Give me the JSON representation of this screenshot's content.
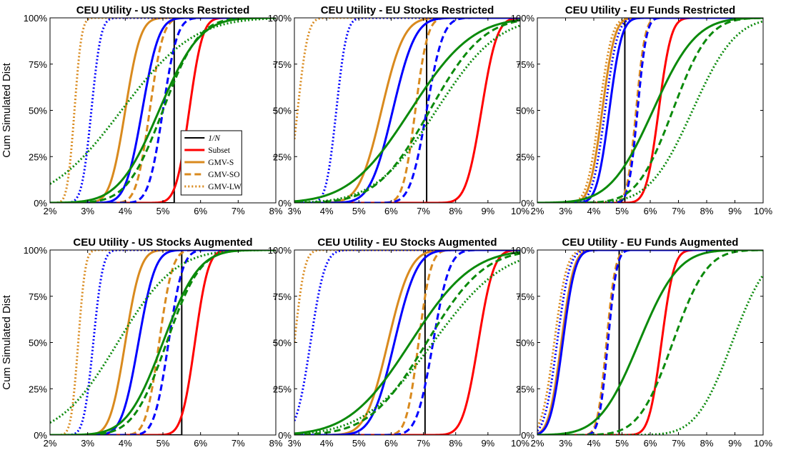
{
  "colors": {
    "one_over_n": "#000000",
    "subset": "#ff0000",
    "gmv_s": "#d98a1e",
    "gmv_so": "#d98a1e",
    "gmv_lw": "#d98a1e",
    "blue": "#0000ff",
    "green": "#0b8a0b"
  },
  "legend": {
    "panel_index": 0,
    "placement": "lower-right",
    "entries": [
      {
        "key": "one_over_n",
        "label": "1/N",
        "color": "#000000",
        "dash": "solid"
      },
      {
        "key": "subset",
        "label": "Subset",
        "color": "#ff0000",
        "dash": "solid"
      },
      {
        "key": "gmv_s",
        "label": "GMV-S",
        "color": "#d98a1e",
        "dash": "solid"
      },
      {
        "key": "gmv_so",
        "label": "GMV-SO",
        "color": "#d98a1e",
        "dash": "dashed"
      },
      {
        "key": "gmv_lw",
        "label": "GMV-LW",
        "color": "#d98a1e",
        "dash": "dotted"
      }
    ]
  },
  "ylabel": "Cum Simulated Dist",
  "chart_data": [
    {
      "type": "line",
      "title": "CEU Utility - US Stocks Restricted",
      "xlim": [
        2,
        8
      ],
      "xticks": [
        2,
        3,
        4,
        5,
        6,
        7,
        8
      ],
      "ylim": [
        0,
        100
      ],
      "yticks": [
        0,
        25,
        50,
        75,
        100
      ],
      "x_unit": "%",
      "y_unit": "%",
      "grid": false,
      "legend": "lower-right",
      "series": [
        {
          "key": "one_over_n",
          "color": "#000000",
          "dash": "solid",
          "vertical": 5.3
        },
        {
          "key": "subset",
          "color": "#ff0000",
          "dash": "solid",
          "mu": 5.7,
          "sd": 0.28
        },
        {
          "key": "gmv_s",
          "color": "#d98a1e",
          "dash": "solid",
          "mu": 4.0,
          "sd": 0.32
        },
        {
          "key": "gmv_so",
          "color": "#d98a1e",
          "dash": "dashed",
          "mu": 4.65,
          "sd": 0.28
        },
        {
          "key": "gmv_lw",
          "color": "#d98a1e",
          "dash": "dotted",
          "mu": 2.65,
          "sd": 0.15
        },
        {
          "key": "blue_s",
          "color": "#0000ff",
          "dash": "solid",
          "mu": 4.45,
          "sd": 0.35
        },
        {
          "key": "blue_so",
          "color": "#0000ff",
          "dash": "dashed",
          "mu": 5.0,
          "sd": 0.3
        },
        {
          "key": "blue_lw",
          "color": "#0000ff",
          "dash": "dotted",
          "mu": 3.1,
          "sd": 0.2
        },
        {
          "key": "green_s",
          "color": "#0b8a0b",
          "dash": "solid",
          "mu": 4.9,
          "sd": 0.85
        },
        {
          "key": "green_so",
          "color": "#0b8a0b",
          "dash": "dashed",
          "mu": 5.0,
          "sd": 0.75
        },
        {
          "key": "green_lw",
          "color": "#0b8a0b",
          "dash": "dotted",
          "mu": 3.9,
          "sd": 1.5
        }
      ]
    },
    {
      "type": "line",
      "title": "CEU Utility - EU Stocks Restricted",
      "xlim": [
        3,
        10
      ],
      "xticks": [
        3,
        4,
        5,
        6,
        7,
        8,
        9,
        10
      ],
      "ylim": [
        0,
        100
      ],
      "yticks": [
        0,
        25,
        50,
        75,
        100
      ],
      "x_unit": "%",
      "y_unit": "%",
      "grid": false,
      "series": [
        {
          "key": "one_over_n",
          "color": "#000000",
          "dash": "solid",
          "vertical": 7.1
        },
        {
          "key": "subset",
          "color": "#ff0000",
          "dash": "solid",
          "mu": 8.8,
          "sd": 0.38
        },
        {
          "key": "gmv_s",
          "color": "#d98a1e",
          "dash": "solid",
          "mu": 5.7,
          "sd": 0.55
        },
        {
          "key": "gmv_so",
          "color": "#d98a1e",
          "dash": "dashed",
          "mu": 6.75,
          "sd": 0.3
        },
        {
          "key": "gmv_lw",
          "color": "#d98a1e",
          "dash": "dotted",
          "mu": 3.1,
          "sd": 0.25
        },
        {
          "key": "blue_s",
          "color": "#0000ff",
          "dash": "solid",
          "mu": 6.05,
          "sd": 0.55
        },
        {
          "key": "blue_so",
          "color": "#0000ff",
          "dash": "dashed",
          "mu": 7.1,
          "sd": 0.4
        },
        {
          "key": "blue_lw",
          "color": "#0000ff",
          "dash": "dotted",
          "mu": 4.3,
          "sd": 0.25
        },
        {
          "key": "green_s",
          "color": "#0b8a0b",
          "dash": "solid",
          "mu": 6.6,
          "sd": 1.5
        },
        {
          "key": "green_so",
          "color": "#0b8a0b",
          "dash": "dashed",
          "mu": 7.2,
          "sd": 1.3
        },
        {
          "key": "green_lw",
          "color": "#0b8a0b",
          "dash": "dotted",
          "mu": 7.4,
          "sd": 1.5
        }
      ]
    },
    {
      "type": "line",
      "title": "CEU Utility - EU Funds Restricted",
      "xlim": [
        2,
        10
      ],
      "xticks": [
        2,
        3,
        4,
        5,
        6,
        7,
        8,
        9,
        10
      ],
      "ylim": [
        0,
        100
      ],
      "yticks": [
        0,
        25,
        50,
        75,
        100
      ],
      "x_unit": "%",
      "y_unit": "%",
      "grid": false,
      "series": [
        {
          "key": "one_over_n",
          "color": "#000000",
          "dash": "solid",
          "vertical": 5.1
        },
        {
          "key": "subset",
          "color": "#ff0000",
          "dash": "solid",
          "mu": 6.3,
          "sd": 0.35
        },
        {
          "key": "gmv_s",
          "color": "#d98a1e",
          "dash": "solid",
          "mu": 4.3,
          "sd": 0.35
        },
        {
          "key": "gmv_so",
          "color": "#d98a1e",
          "dash": "dashed",
          "mu": 5.5,
          "sd": 0.25
        },
        {
          "key": "gmv_lw",
          "color": "#d98a1e",
          "dash": "dotted",
          "mu": 4.2,
          "sd": 0.35
        },
        {
          "key": "blue_s",
          "color": "#0000ff",
          "dash": "solid",
          "mu": 4.55,
          "sd": 0.35
        },
        {
          "key": "blue_so",
          "color": "#0000ff",
          "dash": "dashed",
          "mu": 5.55,
          "sd": 0.25
        },
        {
          "key": "blue_lw",
          "color": "#0000ff",
          "dash": "dotted",
          "mu": 4.4,
          "sd": 0.35
        },
        {
          "key": "green_s",
          "color": "#0b8a0b",
          "dash": "solid",
          "mu": 6.1,
          "sd": 1.2
        },
        {
          "key": "green_so",
          "color": "#0b8a0b",
          "dash": "dashed",
          "mu": 6.8,
          "sd": 1.0
        },
        {
          "key": "green_lw",
          "color": "#0b8a0b",
          "dash": "dotted",
          "mu": 7.5,
          "sd": 1.2
        }
      ]
    },
    {
      "type": "line",
      "title": "CEU Utility - US Stocks Augmented",
      "xlim": [
        2,
        8
      ],
      "xticks": [
        2,
        3,
        4,
        5,
        6,
        7,
        8
      ],
      "ylim": [
        0,
        100
      ],
      "yticks": [
        0,
        25,
        50,
        75,
        100
      ],
      "x_unit": "%",
      "y_unit": "%",
      "grid": false,
      "series": [
        {
          "key": "one_over_n",
          "color": "#000000",
          "dash": "solid",
          "vertical": 5.5
        },
        {
          "key": "subset",
          "color": "#ff0000",
          "dash": "solid",
          "mu": 5.85,
          "sd": 0.28
        },
        {
          "key": "gmv_s",
          "color": "#d98a1e",
          "dash": "solid",
          "mu": 4.0,
          "sd": 0.32
        },
        {
          "key": "gmv_so",
          "color": "#d98a1e",
          "dash": "dashed",
          "mu": 4.9,
          "sd": 0.28
        },
        {
          "key": "gmv_lw",
          "color": "#d98a1e",
          "dash": "dotted",
          "mu": 2.75,
          "sd": 0.15
        },
        {
          "key": "blue_s",
          "color": "#0000ff",
          "dash": "solid",
          "mu": 4.35,
          "sd": 0.35
        },
        {
          "key": "blue_so",
          "color": "#0000ff",
          "dash": "dashed",
          "mu": 5.15,
          "sd": 0.3
        },
        {
          "key": "blue_lw",
          "color": "#0000ff",
          "dash": "dotted",
          "mu": 3.15,
          "sd": 0.2
        },
        {
          "key": "green_s",
          "color": "#0b8a0b",
          "dash": "solid",
          "mu": 5.0,
          "sd": 0.75
        },
        {
          "key": "green_so",
          "color": "#0b8a0b",
          "dash": "dashed",
          "mu": 5.1,
          "sd": 0.7
        },
        {
          "key": "green_lw",
          "color": "#0b8a0b",
          "dash": "dotted",
          "mu": 3.8,
          "sd": 1.2
        }
      ]
    },
    {
      "type": "line",
      "title": "CEU Utility - EU Stocks Augmented",
      "xlim": [
        3,
        10
      ],
      "xticks": [
        3,
        4,
        5,
        6,
        7,
        8,
        9,
        10
      ],
      "ylim": [
        0,
        100
      ],
      "yticks": [
        0,
        25,
        50,
        75,
        100
      ],
      "x_unit": "%",
      "y_unit": "%",
      "grid": false,
      "series": [
        {
          "key": "one_over_n",
          "color": "#000000",
          "dash": "solid",
          "vertical": 7.05
        },
        {
          "key": "subset",
          "color": "#ff0000",
          "dash": "solid",
          "mu": 8.7,
          "sd": 0.38
        },
        {
          "key": "gmv_s",
          "color": "#d98a1e",
          "dash": "solid",
          "mu": 5.9,
          "sd": 0.55
        },
        {
          "key": "gmv_so",
          "color": "#d98a1e",
          "dash": "dashed",
          "mu": 6.85,
          "sd": 0.3
        },
        {
          "key": "gmv_lw",
          "color": "#d98a1e",
          "dash": "dotted",
          "mu": 3.0,
          "sd": 0.25
        },
        {
          "key": "blue_s",
          "color": "#0000ff",
          "dash": "solid",
          "mu": 6.1,
          "sd": 0.55
        },
        {
          "key": "blue_so",
          "color": "#0000ff",
          "dash": "dashed",
          "mu": 7.3,
          "sd": 0.4
        },
        {
          "key": "blue_lw",
          "color": "#0000ff",
          "dash": "dotted",
          "mu": 3.5,
          "sd": 0.35
        },
        {
          "key": "green_s",
          "color": "#0b8a0b",
          "dash": "solid",
          "mu": 6.6,
          "sd": 1.5
        },
        {
          "key": "green_so",
          "color": "#0b8a0b",
          "dash": "dashed",
          "mu": 7.1,
          "sd": 1.4
        },
        {
          "key": "green_lw",
          "color": "#0b8a0b",
          "dash": "dotted",
          "mu": 7.3,
          "sd": 1.7
        }
      ]
    },
    {
      "type": "line",
      "title": "CEU Utility - EU Funds Augmented",
      "xlim": [
        2,
        10
      ],
      "xticks": [
        2,
        3,
        4,
        5,
        6,
        7,
        8,
        9,
        10
      ],
      "ylim": [
        0,
        100
      ],
      "yticks": [
        0,
        25,
        50,
        75,
        100
      ],
      "x_unit": "%",
      "y_unit": "%",
      "grid": false,
      "series": [
        {
          "key": "one_over_n",
          "color": "#000000",
          "dash": "solid",
          "vertical": 4.9
        },
        {
          "key": "subset",
          "color": "#ff0000",
          "dash": "solid",
          "mu": 6.4,
          "sd": 0.35
        },
        {
          "key": "gmv_s",
          "color": "#d98a1e",
          "dash": "solid",
          "mu": 2.85,
          "sd": 0.35
        },
        {
          "key": "gmv_so",
          "color": "#d98a1e",
          "dash": "dashed",
          "mu": 4.45,
          "sd": 0.25
        },
        {
          "key": "gmv_lw",
          "color": "#d98a1e",
          "dash": "dotted",
          "mu": 2.6,
          "sd": 0.35
        },
        {
          "key": "blue_s",
          "color": "#0000ff",
          "dash": "solid",
          "mu": 2.9,
          "sd": 0.35
        },
        {
          "key": "blue_so",
          "color": "#0000ff",
          "dash": "dashed",
          "mu": 4.5,
          "sd": 0.25
        },
        {
          "key": "blue_lw",
          "color": "#0000ff",
          "dash": "dotted",
          "mu": 2.7,
          "sd": 0.35
        },
        {
          "key": "green_s",
          "color": "#0b8a0b",
          "dash": "solid",
          "mu": 5.6,
          "sd": 1.1
        },
        {
          "key": "green_so",
          "color": "#0b8a0b",
          "dash": "dashed",
          "mu": 6.8,
          "sd": 0.95
        },
        {
          "key": "green_lw",
          "color": "#0b8a0b",
          "dash": "dotted",
          "mu": 8.9,
          "sd": 1.0
        }
      ]
    }
  ]
}
